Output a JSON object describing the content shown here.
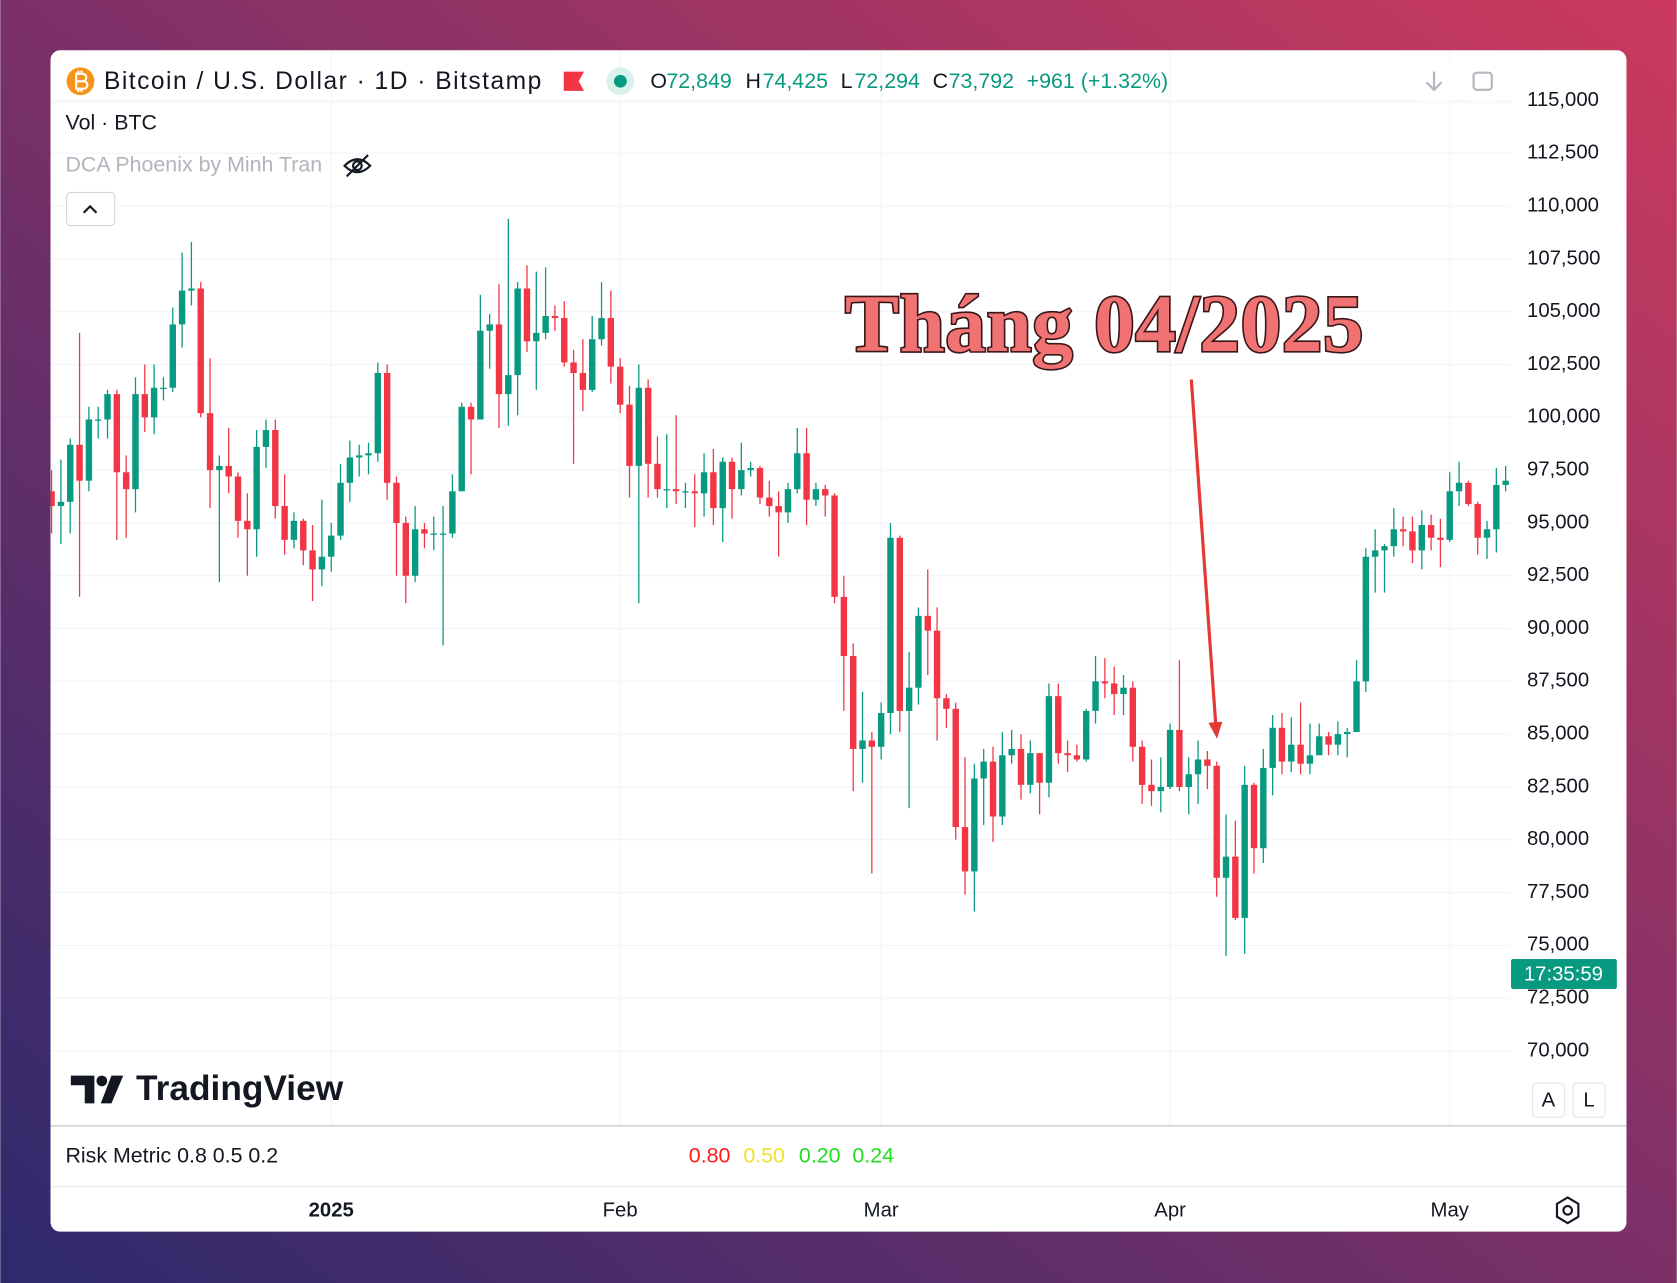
{
  "header": {
    "symbol": "Bitcoin / U.S. Dollar · 1D · Bitstamp",
    "o_label": "O",
    "o": "72,849",
    "h_label": "H",
    "h": "74,425",
    "l_label": "L",
    "l": "72,294",
    "c_label": "C",
    "c": "73,792",
    "change": "+961 (+1.32%)"
  },
  "indicators": {
    "volume": "Vol · BTC",
    "script": "DCA Phoenix by Minh Tran"
  },
  "risk_metric": {
    "label": "Risk Metric 0.8 0.5 0.2",
    "values": [
      "0.80",
      "0.50",
      "0.20",
      "0.24"
    ],
    "colors": [
      "#ff1a1a",
      "#f0e130",
      "#22dd22",
      "#22dd22"
    ]
  },
  "branding": "TradingView",
  "countdown": "17:35:59",
  "scale_buttons": [
    "A",
    "L"
  ],
  "chart_data": {
    "type": "candlestick",
    "annotation": "Tháng 04/2025",
    "up_color": "#089981",
    "down_color": "#f23645",
    "grid": true,
    "xlim": [
      0,
      156
    ],
    "xticks": [
      {
        "value": 30,
        "label": "2025"
      },
      {
        "value": 61,
        "label": "Feb"
      },
      {
        "value": 89,
        "label": "Mar"
      },
      {
        "value": 120,
        "label": "Apr"
      },
      {
        "value": 150,
        "label": "May"
      }
    ],
    "ylim": [
      66500,
      117300
    ],
    "yticks": [
      {
        "value": 70000,
        "label": "70,000"
      },
      {
        "value": 72500,
        "label": "72,500"
      },
      {
        "value": 75000,
        "label": "75,000"
      },
      {
        "value": 77500,
        "label": "77,500"
      },
      {
        "value": 80000,
        "label": "80,000"
      },
      {
        "value": 82500,
        "label": "82,500"
      },
      {
        "value": 85000,
        "label": "85,000"
      },
      {
        "value": 87500,
        "label": "87,500"
      },
      {
        "value": 90000,
        "label": "90,000"
      },
      {
        "value": 92500,
        "label": "92,500"
      },
      {
        "value": 95000,
        "label": "95,000"
      },
      {
        "value": 97500,
        "label": "97,500"
      },
      {
        "value": 100000,
        "label": "100,000"
      },
      {
        "value": 102500,
        "label": "102,500"
      },
      {
        "value": 105000,
        "label": "105,000"
      },
      {
        "value": 107500,
        "label": "107,500"
      },
      {
        "value": 110000,
        "label": "110,000"
      },
      {
        "value": 112500,
        "label": "112,500"
      },
      {
        "value": 115000,
        "label": "115,000"
      }
    ],
    "open": [
      96500,
      95800,
      96000,
      98700,
      97000,
      99900,
      99900,
      101100,
      97400,
      96600,
      101100,
      100000,
      101400,
      101400,
      104400,
      106000,
      106100,
      100200,
      97500,
      97700,
      97200,
      95100,
      94700,
      98600,
      99400,
      95800,
      94200,
      95100,
      93700,
      92800,
      93400,
      94400,
      96900,
      98100,
      98200,
      98300,
      102100,
      96900,
      95000,
      92500,
      94700,
      94500,
      94500,
      94500,
      96500,
      100500,
      99900,
      104100,
      104400,
      101100,
      102000,
      106100,
      103600,
      104000,
      104800,
      104700,
      102600,
      102100,
      101300,
      103700,
      104700,
      102400,
      100600,
      97700,
      101400,
      97800,
      96600,
      96600,
      96500,
      96500,
      96400,
      97400,
      95700,
      97900,
      96600,
      97500,
      97600,
      96200,
      95800,
      95500,
      96600,
      98300,
      96100,
      96600,
      96300,
      91500,
      88700,
      84300,
      84700,
      84400,
      86000,
      94300,
      86100,
      87200,
      90600,
      89900,
      86700,
      86200,
      80600,
      78500,
      82900,
      83700,
      81100,
      84000,
      84300,
      82600,
      84100,
      82700,
      86800,
      84100,
      84000,
      83800,
      86100,
      87500,
      87400,
      86900,
      87200,
      84400,
      82600,
      82300,
      82500,
      85200,
      82500,
      83100,
      83800,
      83500,
      78200,
      79200,
      76300,
      82600,
      79600,
      83400,
      85300,
      83700,
      84500,
      83600,
      84000,
      84900,
      84500,
      85000,
      85100,
      87500,
      93400,
      93700,
      93900,
      94700,
      94600,
      93700,
      94900,
      94300,
      94200,
      96500,
      96900,
      95900,
      94300,
      94700,
      96800
    ],
    "high": [
      97500,
      98000,
      99000,
      104000,
      100500,
      100500,
      101300,
      101300,
      98200,
      101900,
      102500,
      102500,
      101900,
      105200,
      107800,
      108300,
      106400,
      102800,
      98200,
      99500,
      97400,
      96400,
      99400,
      99900,
      99900,
      97300,
      95500,
      95200,
      94900,
      96100,
      95000,
      97800,
      98900,
      98700,
      98800,
      102600,
      102500,
      97200,
      95300,
      95800,
      95000,
      95300,
      95800,
      97300,
      100700,
      100700,
      105800,
      104900,
      106300,
      109400,
      106400,
      107200,
      106900,
      107100,
      105300,
      105500,
      103200,
      103700,
      104800,
      106400,
      106000,
      102800,
      101500,
      102500,
      101800,
      99100,
      99200,
      100100,
      96900,
      97300,
      98300,
      98500,
      98100,
      98100,
      98800,
      97900,
      97700,
      97000,
      96500,
      96900,
      99500,
      99500,
      96900,
      96800,
      96400,
      92500,
      89300,
      87000,
      85100,
      86500,
      95000,
      94400,
      88900,
      91000,
      92800,
      91000,
      86900,
      86500,
      83900,
      83600,
      84300,
      84400,
      85100,
      85200,
      85000,
      84700,
      84100,
      87400,
      87400,
      84700,
      84500,
      86200,
      88700,
      88600,
      88200,
      87800,
      87500,
      84700,
      83800,
      83900,
      85500,
      88500,
      83900,
      84700,
      84200,
      83700,
      81200,
      80900,
      83500,
      82700,
      84300,
      85900,
      86000,
      85800,
      86500,
      85500,
      85500,
      85100,
      85600,
      85300,
      88500,
      93800,
      94700,
      94000,
      95700,
      95300,
      95300,
      95600,
      95400,
      95200,
      97400,
      97900,
      97000,
      96000,
      95100,
      97600,
      97700
    ],
    "low": [
      94500,
      94000,
      94500,
      91500,
      96500,
      99000,
      99000,
      94200,
      94300,
      95500,
      99300,
      99200,
      100800,
      101200,
      103300,
      105300,
      100000,
      95700,
      92200,
      96400,
      94300,
      92500,
      93400,
      97600,
      95200,
      93500,
      93800,
      93000,
      91300,
      92000,
      92700,
      94200,
      96000,
      97200,
      97300,
      97900,
      96100,
      92500,
      91200,
      92200,
      93800,
      93700,
      89200,
      94300,
      96500,
      97300,
      99900,
      102300,
      99500,
      99600,
      100100,
      103100,
      101300,
      103700,
      104100,
      102400,
      97800,
      100300,
      101200,
      103400,
      101600,
      100200,
      96200,
      91200,
      96200,
      96200,
      95700,
      95900,
      95700,
      94800,
      95300,
      94900,
      94100,
      95200,
      96300,
      97200,
      95900,
      95300,
      93400,
      95000,
      96400,
      94900,
      95800,
      95300,
      91200,
      86100,
      82300,
      82700,
      78400,
      83800,
      85000,
      85100,
      81500,
      86400,
      87800,
      84700,
      85300,
      80000,
      77400,
      76600,
      80700,
      79900,
      80700,
      83600,
      81900,
      82200,
      81200,
      82000,
      83600,
      83200,
      83700,
      83700,
      85500,
      86700,
      85900,
      85900,
      83700,
      81700,
      81600,
      81300,
      82400,
      82300,
      81200,
      81700,
      82400,
      77300,
      74500,
      76200,
      74600,
      78400,
      78900,
      82100,
      83100,
      83200,
      83100,
      83100,
      84000,
      84000,
      84000,
      83900,
      85100,
      87000,
      91700,
      91700,
      93400,
      93900,
      93100,
      92800,
      93700,
      92900,
      94100,
      95800,
      95800,
      93500,
      93300,
      93600,
      96500
    ],
    "close": [
      95800,
      96000,
      98700,
      97000,
      99900,
      99900,
      101100,
      97400,
      96600,
      101100,
      100000,
      101400,
      101400,
      104400,
      106000,
      106100,
      100200,
      97500,
      97700,
      97200,
      95100,
      94700,
      98600,
      99400,
      95800,
      94200,
      95100,
      93700,
      92800,
      93400,
      94400,
      96900,
      98100,
      98200,
      98300,
      102100,
      96900,
      95000,
      92500,
      94700,
      94500,
      94500,
      94500,
      96500,
      100500,
      99900,
      104100,
      104400,
      101100,
      102000,
      106100,
      103600,
      104000,
      104800,
      104700,
      102600,
      102100,
      101300,
      103700,
      104700,
      102400,
      100600,
      97700,
      101400,
      97800,
      96600,
      96600,
      96500,
      96500,
      96400,
      97400,
      95700,
      97900,
      96600,
      97500,
      97600,
      96200,
      95800,
      95500,
      96600,
      98300,
      96100,
      96600,
      96300,
      91500,
      88700,
      84300,
      84700,
      84400,
      86000,
      94300,
      86100,
      87200,
      90600,
      89900,
      86700,
      86200,
      80600,
      78500,
      82900,
      83700,
      81100,
      84000,
      84300,
      82600,
      84100,
      82700,
      86800,
      84100,
      84000,
      83800,
      86100,
      87500,
      87400,
      86900,
      87200,
      84400,
      82600,
      82300,
      82500,
      85200,
      82500,
      83100,
      83800,
      83500,
      78200,
      79200,
      76300,
      82600,
      79600,
      83400,
      85300,
      83700,
      84500,
      83600,
      84000,
      84900,
      84500,
      85000,
      85100,
      87500,
      93400,
      93700,
      93900,
      94700,
      94600,
      93700,
      94900,
      94300,
      94200,
      96500,
      96900,
      95900,
      94300,
      94700,
      96800,
      97000
    ]
  }
}
